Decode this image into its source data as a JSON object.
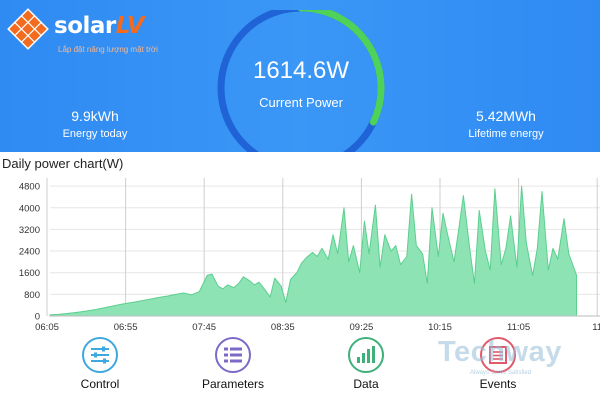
{
  "brand": {
    "name_main": "solar",
    "name_accent": "LV",
    "tagline": "Lắp đặt năng lượng mặt trời",
    "color_primary": "#f36b1f"
  },
  "header": {
    "current_power": "1614.6W",
    "current_power_label": "Current Power",
    "energy_today": "9.9kWh",
    "energy_today_label": "Energy today",
    "lifetime_energy": "5.42MWh",
    "lifetime_energy_label": "Lifetime energy",
    "gauge_fraction": 0.32,
    "background_color": "#3391f4",
    "gauge_track_color": "#1f63d6",
    "gauge_progress_color": "#4fd25a"
  },
  "chart_title": "Daily power chart(W)",
  "chart_data": {
    "type": "area",
    "title": "Daily power chart(W)",
    "xlabel": "",
    "ylabel": "",
    "x_tick_labels": [
      "06:05",
      "06:55",
      "07:45",
      "08:35",
      "09:25",
      "10:15",
      "11:05",
      "11"
    ],
    "y_ticks": [
      0,
      800,
      1600,
      2400,
      3200,
      4000,
      4800
    ],
    "ylim": [
      0,
      5100
    ],
    "fill_color": "#8ee3b4",
    "line_color": "#5bcf8f",
    "grid": true,
    "x": [
      "06:05",
      "06:10",
      "06:15",
      "06:20",
      "06:25",
      "06:30",
      "06:35",
      "06:40",
      "06:45",
      "06:50",
      "06:55",
      "07:00",
      "07:05",
      "07:10",
      "07:15",
      "07:20",
      "07:25",
      "07:30",
      "07:35",
      "07:40",
      "07:45",
      "07:48",
      "07:52",
      "07:55",
      "07:58",
      "08:02",
      "08:05",
      "08:08",
      "08:12",
      "08:15",
      "08:18",
      "08:22",
      "08:25",
      "08:28",
      "08:32",
      "08:35",
      "08:38",
      "08:42",
      "08:45",
      "08:48",
      "08:52",
      "08:55",
      "08:58",
      "09:02",
      "09:05",
      "09:08",
      "09:12",
      "09:15",
      "09:18",
      "09:22",
      "09:25",
      "09:28",
      "09:32",
      "09:35",
      "09:38",
      "09:42",
      "09:45",
      "09:48",
      "09:52",
      "09:55",
      "09:58",
      "10:02",
      "10:05",
      "10:08",
      "10:12",
      "10:15",
      "10:18",
      "10:22",
      "10:25",
      "10:28",
      "10:32",
      "10:35",
      "10:38",
      "10:42",
      "10:45",
      "10:48",
      "10:52",
      "10:55",
      "10:58",
      "11:02",
      "11:05",
      "11:08",
      "11:12",
      "11:15",
      "11:18",
      "11:22",
      "11:25",
      "11:28",
      "11:32",
      "11:35",
      "11:40"
    ],
    "values": [
      40,
      60,
      90,
      120,
      160,
      200,
      250,
      310,
      370,
      430,
      480,
      530,
      580,
      640,
      690,
      740,
      800,
      850,
      780,
      900,
      1500,
      1550,
      1100,
      1000,
      1150,
      1050,
      1200,
      1450,
      1300,
      1150,
      1250,
      950,
      700,
      1400,
      1100,
      500,
      1350,
      1600,
      1950,
      2150,
      2350,
      2200,
      2500,
      2100,
      3000,
      2300,
      4000,
      2000,
      2600,
      1600,
      3500,
      2300,
      4100,
      1800,
      3000,
      2400,
      2600,
      1900,
      2200,
      4500,
      2600,
      2300,
      1200,
      4000,
      2200,
      3800,
      3000,
      2000,
      3200,
      4450,
      2500,
      1200,
      3900,
      2400,
      1700,
      4700,
      1900,
      2500,
      3700,
      1800,
      4800,
      2700,
      1500,
      2500,
      4600,
      1700,
      2500,
      2100,
      3600,
      2300,
      1500
    ]
  },
  "nav": {
    "items": [
      {
        "label": "Control",
        "icon": "sliders-icon",
        "color": "#3ea8e0"
      },
      {
        "label": "Parameters",
        "icon": "list-icon",
        "color": "#7d6ac8"
      },
      {
        "label": "Data",
        "icon": "bar-chart-icon",
        "color": "#3fb07a"
      },
      {
        "label": "Events",
        "icon": "document-icon",
        "color": "#e05a6b"
      }
    ]
  },
  "watermark": {
    "text": "Techway",
    "subtext": "Always Serve Satisfied"
  }
}
